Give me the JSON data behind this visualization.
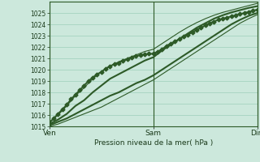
{
  "bg_color": "#cce8dc",
  "grid_color": "#9ecfba",
  "line_color": "#2d5a27",
  "xlabel_text": "Pression niveau de la mer( hPa )",
  "xtick_labels": [
    "Ven",
    "Sam",
    "Dim"
  ],
  "xtick_positions": [
    0,
    48,
    96
  ],
  "ylim": [
    1015,
    1026
  ],
  "yticks": [
    1015,
    1016,
    1017,
    1018,
    1019,
    1020,
    1021,
    1022,
    1023,
    1024,
    1025
  ],
  "total_points": 97,
  "lines": {
    "main_marker": {
      "x": [
        0,
        2,
        4,
        6,
        8,
        10,
        12,
        14,
        16,
        18,
        20,
        22,
        24,
        26,
        28,
        30,
        32,
        34,
        36,
        38,
        40,
        42,
        44,
        46,
        48,
        50,
        52,
        54,
        56,
        58,
        60,
        62,
        64,
        66,
        68,
        70,
        72,
        74,
        76,
        78,
        80,
        82,
        84,
        86,
        88,
        90,
        92,
        94,
        96
      ],
      "y": [
        1015.3,
        1015.7,
        1016.1,
        1016.5,
        1016.9,
        1017.4,
        1017.8,
        1018.2,
        1018.6,
        1019.0,
        1019.3,
        1019.6,
        1019.8,
        1020.1,
        1020.3,
        1020.5,
        1020.6,
        1020.8,
        1020.9,
        1021.1,
        1021.2,
        1021.3,
        1021.35,
        1021.4,
        1021.4,
        1021.6,
        1021.8,
        1022.1,
        1022.3,
        1022.5,
        1022.7,
        1022.9,
        1023.1,
        1023.3,
        1023.5,
        1023.7,
        1023.9,
        1024.1,
        1024.25,
        1024.4,
        1024.5,
        1024.6,
        1024.7,
        1024.8,
        1024.9,
        1025.0,
        1025.1,
        1025.2,
        1025.3
      ],
      "marker": "D",
      "markersize": 2.5,
      "linewidth": 1.4,
      "zorder": 5
    },
    "upper_thick": {
      "x": [
        0,
        4,
        8,
        12,
        16,
        20,
        24,
        28,
        32,
        36,
        40,
        44,
        48,
        52,
        56,
        60,
        64,
        68,
        72,
        76,
        80,
        84,
        88,
        92,
        96
      ],
      "y": [
        1015.2,
        1015.6,
        1016.1,
        1016.8,
        1017.3,
        1018.0,
        1018.6,
        1019.2,
        1019.6,
        1020.0,
        1020.4,
        1020.8,
        1021.1,
        1021.7,
        1022.2,
        1022.7,
        1023.2,
        1023.7,
        1024.1,
        1024.5,
        1024.8,
        1025.05,
        1025.25,
        1025.45,
        1025.6
      ],
      "linewidth": 1.5,
      "zorder": 4
    },
    "lower_thick": {
      "x": [
        0,
        4,
        8,
        12,
        16,
        20,
        24,
        28,
        32,
        36,
        40,
        44,
        48,
        52,
        56,
        60,
        64,
        68,
        72,
        76,
        80,
        84,
        88,
        92,
        96
      ],
      "y": [
        1015.1,
        1015.4,
        1015.7,
        1016.1,
        1016.5,
        1016.9,
        1017.3,
        1017.7,
        1018.0,
        1018.4,
        1018.8,
        1019.1,
        1019.5,
        1020.0,
        1020.5,
        1021.0,
        1021.5,
        1022.0,
        1022.5,
        1023.0,
        1023.5,
        1024.0,
        1024.4,
        1024.75,
        1025.0
      ],
      "linewidth": 1.5,
      "zorder": 4
    },
    "upper_thin": {
      "x": [
        0,
        4,
        8,
        12,
        16,
        20,
        24,
        28,
        32,
        36,
        40,
        44,
        48,
        52,
        56,
        60,
        64,
        68,
        72,
        76,
        80,
        84,
        88,
        92,
        96
      ],
      "y": [
        1015.4,
        1016.0,
        1016.8,
        1017.7,
        1018.4,
        1019.2,
        1019.8,
        1020.3,
        1020.7,
        1021.0,
        1021.3,
        1021.6,
        1021.8,
        1022.3,
        1022.8,
        1023.3,
        1023.75,
        1024.15,
        1024.5,
        1024.8,
        1025.05,
        1025.25,
        1025.45,
        1025.65,
        1025.85
      ],
      "linewidth": 0.8,
      "zorder": 3
    },
    "lower_thin": {
      "x": [
        0,
        4,
        8,
        12,
        16,
        20,
        24,
        28,
        32,
        36,
        40,
        44,
        48,
        52,
        56,
        60,
        64,
        68,
        72,
        76,
        80,
        84,
        88,
        92,
        96
      ],
      "y": [
        1015.0,
        1015.2,
        1015.5,
        1015.8,
        1016.1,
        1016.4,
        1016.7,
        1017.1,
        1017.5,
        1017.9,
        1018.3,
        1018.7,
        1019.1,
        1019.6,
        1020.1,
        1020.6,
        1021.1,
        1021.6,
        1022.1,
        1022.6,
        1023.1,
        1023.6,
        1024.1,
        1024.5,
        1024.85
      ],
      "linewidth": 0.8,
      "zorder": 3
    }
  }
}
